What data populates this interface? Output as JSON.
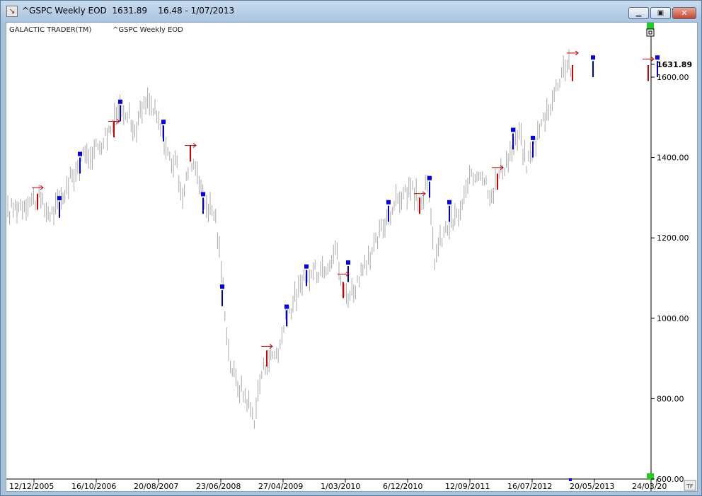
{
  "window": {
    "title": "^GSPC Weekly EOD  1631.89    16.48 - 1/07/2013",
    "minimize_label": "▁",
    "maximize_label": "▣",
    "close_label": "✕"
  },
  "chart_header": {
    "brand": "GALACTIC TRADER(TM)",
    "symbol": "^GSPC Weekly EOD"
  },
  "corner_labels": {
    "top_box": "",
    "tf": "TF"
  },
  "colors": {
    "bar": "#a8a8a8",
    "buy": "#0000cc",
    "sell": "#cc0000",
    "marker": "#0000ee",
    "arrow": "#cc0000",
    "green_marker": "#22cc22"
  },
  "chart_data": {
    "type": "bar",
    "title": "^GSPC Weekly EOD",
    "xlabel": "",
    "ylabel": "",
    "ylim": [
      600,
      1700
    ],
    "y_ticks": [
      "600.00",
      "800.00",
      "1000.00",
      "1200.00",
      "1400.00",
      "1600.00"
    ],
    "last_price": "1631.89",
    "x_tick_labels": [
      "12/12/2005",
      "16/10/2006",
      "20/08/2007",
      "23/06/2008",
      "27/04/2009",
      "1/03/2010",
      "6/12/2010",
      "12/09/2011",
      "16/07/2012",
      "20/05/2013",
      "24/03/20"
    ],
    "price_path": [
      [
        0,
        1260
      ],
      [
        10,
        1275
      ],
      [
        30,
        1290
      ],
      [
        45,
        1300
      ],
      [
        55,
        1270
      ],
      [
        65,
        1260
      ],
      [
        75,
        1290
      ],
      [
        95,
        1360
      ],
      [
        110,
        1400
      ],
      [
        130,
        1430
      ],
      [
        150,
        1480
      ],
      [
        160,
        1530
      ],
      [
        170,
        1520
      ],
      [
        180,
        1460
      ],
      [
        190,
        1510
      ],
      [
        200,
        1540
      ],
      [
        210,
        1510
      ],
      [
        220,
        1460
      ],
      [
        230,
        1400
      ],
      [
        240,
        1380
      ],
      [
        250,
        1300
      ],
      [
        260,
        1400
      ],
      [
        270,
        1370
      ],
      [
        280,
        1290
      ],
      [
        295,
        1260
      ],
      [
        305,
        1100
      ],
      [
        315,
        900
      ],
      [
        325,
        840
      ],
      [
        340,
        800
      ],
      [
        350,
        750
      ],
      [
        360,
        860
      ],
      [
        370,
        900
      ],
      [
        385,
        920
      ],
      [
        395,
        1000
      ],
      [
        410,
        1060
      ],
      [
        425,
        1100
      ],
      [
        440,
        1120
      ],
      [
        455,
        1140
      ],
      [
        465,
        1180
      ],
      [
        475,
        1070
      ],
      [
        485,
        1060
      ],
      [
        500,
        1100
      ],
      [
        515,
        1150
      ],
      [
        525,
        1200
      ],
      [
        540,
        1260
      ],
      [
        555,
        1300
      ],
      [
        570,
        1320
      ],
      [
        585,
        1290
      ],
      [
        595,
        1330
      ],
      [
        605,
        1150
      ],
      [
        615,
        1200
      ],
      [
        625,
        1230
      ],
      [
        640,
        1260
      ],
      [
        655,
        1340
      ],
      [
        670,
        1370
      ],
      [
        685,
        1310
      ],
      [
        700,
        1370
      ],
      [
        715,
        1420
      ],
      [
        725,
        1460
      ],
      [
        735,
        1380
      ],
      [
        745,
        1430
      ],
      [
        760,
        1500
      ],
      [
        775,
        1560
      ],
      [
        785,
        1620
      ],
      [
        795,
        1640
      ],
      [
        800,
        1610
      ]
    ],
    "signals": [
      {
        "x": 44,
        "type": "sell",
        "price": 1290
      },
      {
        "x": 75,
        "type": "buy",
        "price": 1270
      },
      {
        "x": 104,
        "type": "buy",
        "price": 1380
      },
      {
        "x": 152,
        "type": "sell",
        "price": 1470
      },
      {
        "x": 161,
        "type": "buy",
        "price": 1510
      },
      {
        "x": 222,
        "type": "buy",
        "price": 1460
      },
      {
        "x": 260,
        "type": "sell",
        "price": 1410
      },
      {
        "x": 278,
        "type": "buy",
        "price": 1280
      },
      {
        "x": 305,
        "type": "buy",
        "price": 1050
      },
      {
        "x": 368,
        "type": "sell",
        "price": 900
      },
      {
        "x": 396,
        "type": "buy",
        "price": 1000
      },
      {
        "x": 424,
        "type": "buy",
        "price": 1100
      },
      {
        "x": 476,
        "type": "sell",
        "price": 1070
      },
      {
        "x": 483,
        "type": "buy",
        "price": 1110
      },
      {
        "x": 540,
        "type": "buy",
        "price": 1260
      },
      {
        "x": 584,
        "type": "sell",
        "price": 1280
      },
      {
        "x": 598,
        "type": "buy",
        "price": 1320
      },
      {
        "x": 626,
        "type": "buy",
        "price": 1260
      },
      {
        "x": 694,
        "type": "sell",
        "price": 1340
      },
      {
        "x": 716,
        "type": "buy",
        "price": 1440
      },
      {
        "x": 744,
        "type": "buy",
        "price": 1420
      },
      {
        "x": 800,
        "type": "sell",
        "price": 1610
      },
      {
        "x": 829,
        "type": "buy",
        "price": 1620
      },
      {
        "x": 907,
        "type": "sell",
        "price": 1610
      },
      {
        "x": 920,
        "type": "buy",
        "price": 1620
      }
    ],
    "arrows": [
      {
        "x": 44,
        "price": 1325
      },
      {
        "x": 152,
        "price": 1490
      },
      {
        "x": 260,
        "price": 1430
      },
      {
        "x": 368,
        "price": 930
      },
      {
        "x": 476,
        "price": 1110
      },
      {
        "x": 584,
        "price": 1310
      },
      {
        "x": 694,
        "price": 1375
      },
      {
        "x": 800,
        "price": 1660
      },
      {
        "x": 907,
        "price": 1645
      }
    ]
  }
}
